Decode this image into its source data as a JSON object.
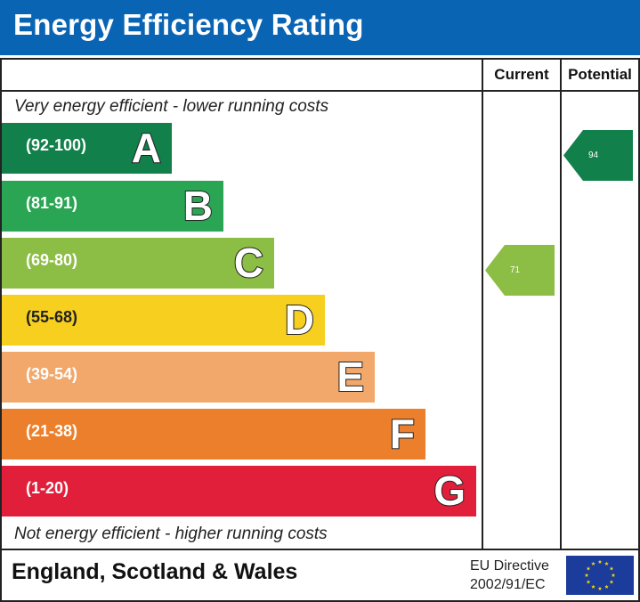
{
  "header": {
    "title": "Energy Efficiency Rating"
  },
  "columns": {
    "current": "Current",
    "potential": "Potential"
  },
  "captions": {
    "top": "Very energy efficient - lower running costs",
    "bottom": "Not energy efficient - higher running costs"
  },
  "footer": {
    "region": "England, Scotland & Wales",
    "directive_line1": "EU Directive",
    "directive_line2": "2002/91/EC"
  },
  "chart_data": {
    "type": "bar",
    "categories": [
      "A",
      "B",
      "C",
      "D",
      "E",
      "F",
      "G"
    ],
    "ranges": [
      "(92-100)",
      "(81-91)",
      "(69-80)",
      "(55-68)",
      "(39-54)",
      "(21-38)",
      "(1-20)"
    ],
    "colors": [
      "#12804a",
      "#2aa554",
      "#8cbd44",
      "#f7cf1f",
      "#f1a86a",
      "#ec7f2b",
      "#e21f3b"
    ],
    "current": {
      "value": 71,
      "band": "C",
      "color": "#8cbd44"
    },
    "potential": {
      "value": 94,
      "band": "A",
      "color": "#12804a"
    }
  },
  "icons": {
    "flag": "eu-flag-icon"
  }
}
